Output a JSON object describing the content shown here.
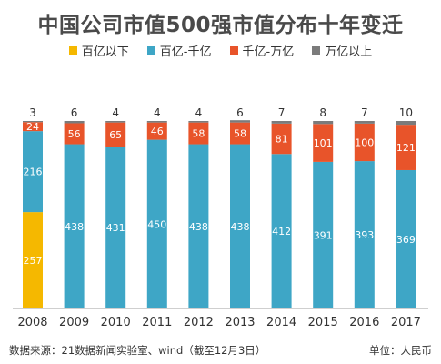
{
  "title": "中国公司市值500强市值分布十年变迁",
  "footer": {
    "source": "数据来源：21数据新闻实验室、wind（截至12月3日）",
    "unit": "单位：人民币"
  },
  "colors": {
    "below_10b": "#f5b800",
    "10b_100b": "#3ea6c6",
    "100b_1t": "#e8542a",
    "above_1t": "#7b7b7b"
  },
  "chart_data": {
    "type": "bar",
    "stacked": true,
    "title": "中国公司市值500强市值分布十年变迁",
    "legend_position": "top",
    "categories": [
      "2008",
      "2009",
      "2010",
      "2011",
      "2012",
      "2013",
      "2014",
      "2015",
      "2016",
      "2017"
    ],
    "series": [
      {
        "name": "百亿以下",
        "color": "#f5b800",
        "values": [
          257,
          0,
          0,
          0,
          0,
          0,
          0,
          0,
          0,
          0
        ]
      },
      {
        "name": "百亿-千亿",
        "color": "#3ea6c6",
        "values": [
          216,
          438,
          431,
          450,
          438,
          438,
          412,
          391,
          393,
          369
        ]
      },
      {
        "name": "千亿-万亿",
        "color": "#e8542a",
        "values": [
          24,
          56,
          65,
          46,
          58,
          58,
          81,
          101,
          100,
          121
        ]
      },
      {
        "name": "万亿以上",
        "color": "#7b7b7b",
        "values": [
          3,
          6,
          4,
          4,
          4,
          6,
          7,
          8,
          7,
          10
        ]
      }
    ],
    "ylim": [
      0,
      500
    ]
  }
}
